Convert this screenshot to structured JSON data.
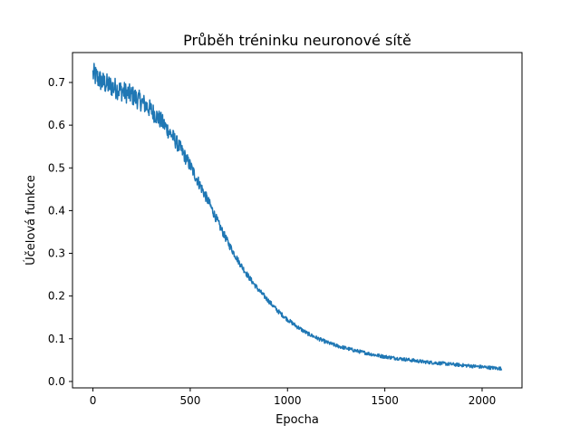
{
  "chart_data": {
    "type": "line",
    "title": "Průběh tréninku neuronové sítě",
    "xlabel": "Epocha",
    "ylabel": "Účelová funkce",
    "xlim": [
      -105,
      2205
    ],
    "ylim": [
      -0.015,
      0.77
    ],
    "xticks": [
      0,
      500,
      1000,
      1500,
      2000
    ],
    "xtick_labels": [
      "0",
      "500",
      "1000",
      "1500",
      "2000"
    ],
    "yticks": [
      0.0,
      0.1,
      0.2,
      0.3,
      0.4,
      0.5,
      0.6,
      0.7
    ],
    "ytick_labels": [
      "0.0",
      "0.1",
      "0.2",
      "0.3",
      "0.4",
      "0.5",
      "0.6",
      "0.7"
    ],
    "grid": false,
    "series": [
      {
        "color": "#1f77b4",
        "x": [
          0,
          50,
          100,
          150,
          200,
          250,
          300,
          350,
          400,
          450,
          500,
          550,
          600,
          650,
          700,
          750,
          800,
          850,
          900,
          950,
          1000,
          1050,
          1100,
          1150,
          1200,
          1250,
          1300,
          1350,
          1400,
          1450,
          1500,
          1550,
          1600,
          1650,
          1700,
          1750,
          1800,
          1850,
          1900,
          1950,
          2000,
          2050,
          2100
        ],
        "y": [
          0.72,
          0.7,
          0.69,
          0.68,
          0.67,
          0.655,
          0.635,
          0.61,
          0.58,
          0.545,
          0.505,
          0.46,
          0.415,
          0.365,
          0.32,
          0.28,
          0.245,
          0.215,
          0.19,
          0.165,
          0.145,
          0.128,
          0.113,
          0.102,
          0.092,
          0.084,
          0.078,
          0.072,
          0.067,
          0.062,
          0.058,
          0.055,
          0.052,
          0.049,
          0.046,
          0.044,
          0.042,
          0.04,
          0.038,
          0.036,
          0.034,
          0.032,
          0.03
        ]
      }
    ]
  }
}
